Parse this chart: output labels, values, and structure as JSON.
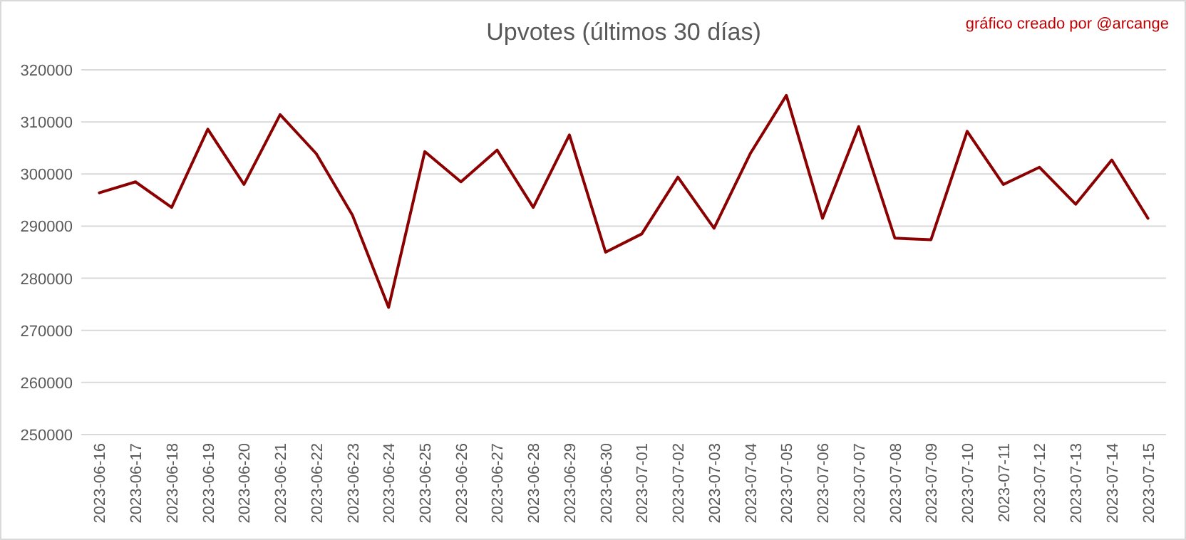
{
  "chart_data": {
    "type": "line",
    "title": "Upvotes (últimos 30 días)",
    "annotations": [
      "gráfico creado por @arcange"
    ],
    "categories": [
      "2023-06-16",
      "2023-06-17",
      "2023-06-18",
      "2023-06-19",
      "2023-06-20",
      "2023-06-21",
      "2023-06-22",
      "2023-06-23",
      "2023-06-24",
      "2023-06-25",
      "2023-06-26",
      "2023-06-27",
      "2023-06-28",
      "2023-06-29",
      "2023-06-30",
      "2023-07-01",
      "2023-07-02",
      "2023-07-03",
      "2023-07-04",
      "2023-07-05",
      "2023-07-06",
      "2023-07-07",
      "2023-07-08",
      "2023-07-09",
      "2023-07-10",
      "2023-07-11",
      "2023-07-12",
      "2023-07-13",
      "2023-07-14",
      "2023-07-15"
    ],
    "series": [
      {
        "color": "#8b0000",
        "values": [
          296400,
          298500,
          293600,
          308600,
          298000,
          311400,
          303900,
          292100,
          274400,
          304300,
          298500,
          304600,
          293600,
          307500,
          285000,
          288500,
          299400,
          289600,
          303900,
          315100,
          291500,
          309100,
          287700,
          287400,
          308200,
          298000,
          301300,
          294200,
          302700,
          291500
        ]
      }
    ],
    "ylim": [
      250000,
      320000
    ],
    "yticks": [
      250000,
      260000,
      270000,
      280000,
      290000,
      300000,
      310000,
      320000
    ],
    "grid": "y",
    "marker": "none",
    "line_style": "solid"
  }
}
